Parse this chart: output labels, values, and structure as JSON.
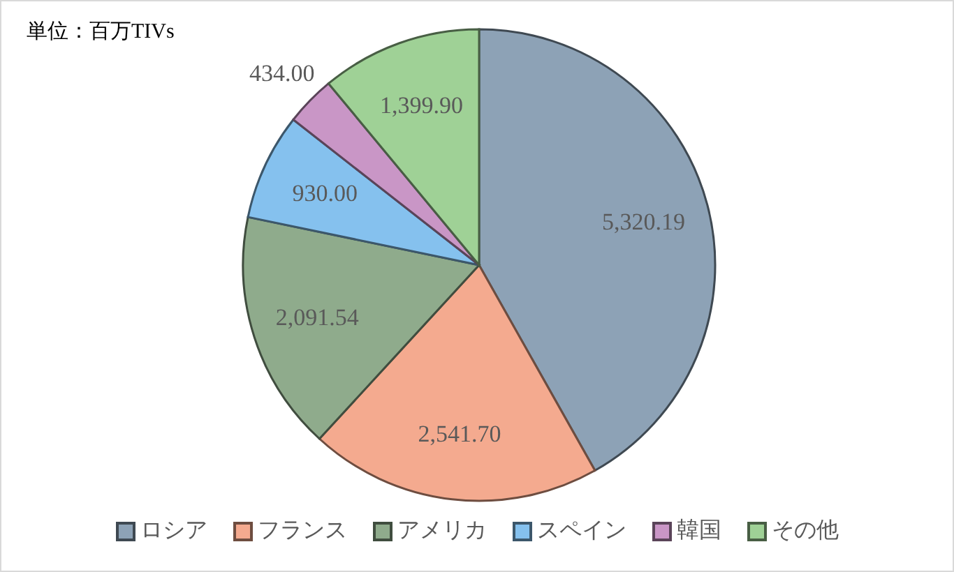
{
  "chart_data": {
    "type": "pie",
    "annotations": [
      "単位：百万TIVs"
    ],
    "categories": [
      "ロシア",
      "フランス",
      "アメリカ",
      "スペイン",
      "韓国",
      "その他"
    ],
    "values": [
      5320.19,
      2541.7,
      2091.54,
      930.0,
      434.0,
      1399.9
    ],
    "colors": [
      "#8da2b6",
      "#f4aa8f",
      "#8fab8c",
      "#85c1ee",
      "#c996c6",
      "#9fd196"
    ],
    "value_labels": [
      "5,320.19",
      "2,541.70",
      "2,091.54",
      "930.00",
      "434.00",
      "1,399.90"
    ],
    "legend": "bottom"
  }
}
